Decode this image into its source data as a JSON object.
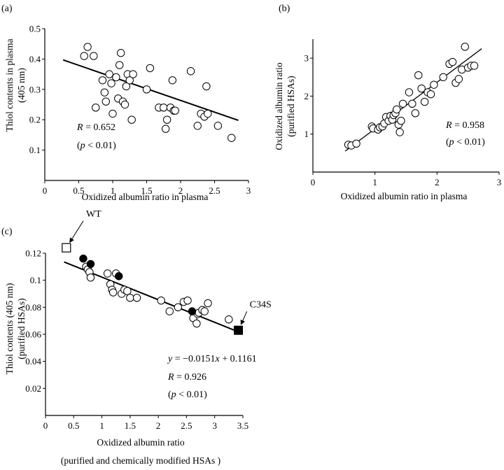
{
  "chart_data": [
    {
      "type": "scatter",
      "panel": "(a)",
      "xlabel": "Oxidized albumin ratio in plasma",
      "ylabel": [
        "Thiol contents in plasma",
        "(405 nm)"
      ],
      "xlim": [
        0,
        3
      ],
      "ylim": [
        0,
        0.5
      ],
      "xticks": [
        0,
        0.5,
        1,
        1.5,
        2,
        2.5,
        3
      ],
      "xtick_labels": [
        "0",
        "0.5",
        "1",
        "1.5",
        "2",
        "2.5",
        "3"
      ],
      "yticks": [
        0.1,
        0.2,
        0.3,
        0.4,
        0.5
      ],
      "ytick_labels": [
        "0.1",
        "0.2",
        "0.3",
        "0.4",
        "0.5"
      ],
      "grid": false,
      "fit_line": {
        "x": [
          0.27,
          2.85
        ],
        "y": [
          0.397,
          0.198
        ]
      },
      "annotations": [
        {
          "var": "R",
          "text": " = 0.652"
        },
        {
          "pre": "(",
          "var": "p",
          "text": " < 0.01)"
        }
      ],
      "series": [
        {
          "marker": "open-circle",
          "x": [
            0.58,
            0.63,
            0.72,
            0.75,
            0.85,
            0.88,
            0.9,
            0.95,
            0.98,
            1.0,
            1.05,
            1.08,
            1.1,
            1.12,
            1.15,
            1.18,
            1.2,
            1.22,
            1.25,
            1.28,
            1.3,
            1.5,
            1.55,
            1.68,
            1.75,
            1.78,
            1.8,
            1.85,
            1.88,
            1.9,
            1.92,
            2.15,
            2.25,
            2.3,
            2.35,
            2.38,
            2.4,
            2.55,
            2.75
          ],
          "y": [
            0.41,
            0.44,
            0.41,
            0.24,
            0.33,
            0.29,
            0.26,
            0.35,
            0.32,
            0.22,
            0.34,
            0.27,
            0.38,
            0.42,
            0.26,
            0.25,
            0.31,
            0.35,
            0.33,
            0.2,
            0.35,
            0.3,
            0.37,
            0.24,
            0.24,
            0.17,
            0.2,
            0.24,
            0.33,
            0.23,
            0.23,
            0.36,
            0.18,
            0.22,
            0.21,
            0.31,
            0.22,
            0.18,
            0.14
          ]
        }
      ]
    },
    {
      "type": "scatter",
      "panel": "(b)",
      "xlabel": "Oxidized albumin ratio in plasma",
      "ylabel": [
        "Oxidized albumin ratio",
        "(purified HSAs)"
      ],
      "xlim": [
        0,
        3
      ],
      "ylim": [
        0,
        3.5
      ],
      "xticks": [
        0,
        1,
        2,
        3
      ],
      "xtick_labels": [
        "0",
        "1",
        "2",
        "3"
      ],
      "yticks": [
        1,
        2,
        3
      ],
      "ytick_labels": [
        "1",
        "2",
        "3"
      ],
      "grid": false,
      "fit_line": {
        "x": [
          0.52,
          2.72
        ],
        "y": [
          0.55,
          3.25
        ]
      },
      "annotations": [
        {
          "var": "R",
          "text": " = 0.958"
        },
        {
          "pre": "(",
          "var": "p",
          "text": " < 0.01)"
        }
      ],
      "series": [
        {
          "marker": "open-circle",
          "x": [
            0.57,
            0.62,
            0.7,
            0.95,
            0.97,
            1.05,
            1.08,
            1.12,
            1.15,
            1.18,
            1.22,
            1.25,
            1.28,
            1.3,
            1.33,
            1.35,
            1.38,
            1.4,
            1.42,
            1.45,
            1.55,
            1.6,
            1.65,
            1.7,
            1.75,
            1.8,
            1.85,
            1.9,
            1.95,
            2.1,
            2.2,
            2.25,
            2.3,
            2.35,
            2.4,
            2.45,
            2.5,
            2.55,
            2.6
          ],
          "y": [
            0.72,
            0.7,
            0.75,
            1.2,
            1.15,
            1.12,
            1.18,
            1.2,
            1.28,
            1.45,
            1.35,
            1.48,
            1.38,
            1.5,
            1.55,
            1.65,
            1.25,
            1.05,
            1.35,
            1.8,
            2.1,
            1.8,
            1.55,
            2.55,
            2.2,
            1.85,
            2.1,
            2.05,
            2.3,
            2.5,
            2.85,
            2.9,
            2.35,
            2.45,
            2.7,
            3.3,
            2.75,
            2.8,
            2.8
          ]
        }
      ]
    },
    {
      "type": "scatter",
      "panel": "(c)",
      "xlabel": [
        "Oxidized albumin ratio",
        "(purified and chemically modified HSAs )"
      ],
      "ylabel": [
        "Thiol contents  (405 nm)",
        "(purified HSAs)"
      ],
      "xlim": [
        0,
        3.5
      ],
      "ylim": [
        0,
        0.12
      ],
      "xticks": [
        0,
        0.5,
        1,
        1.5,
        2,
        2.5,
        3,
        3.5
      ],
      "xtick_labels": [
        "0",
        "0.5",
        "1",
        "1.5",
        "2",
        "2.5",
        "3",
        "3.5"
      ],
      "yticks": [
        0.02,
        0.04,
        0.06,
        0.08,
        0.1,
        0.12
      ],
      "ytick_labels": [
        "0.02",
        "0.04",
        "0.06",
        "0.08",
        "0.1",
        "0.12"
      ],
      "grid": false,
      "fit_line": {
        "x": [
          0.33,
          3.47
        ],
        "y": [
          0.1135,
          0.061
        ]
      },
      "annotations": [
        {
          "pre": "y = −0.0151",
          "var": "x",
          "text": " + 0.1161"
        },
        {
          "var": "R",
          "text": " = 0.926"
        },
        {
          "pre": "(",
          "var": "p",
          "text": " < 0.01)"
        }
      ],
      "labels": [
        {
          "text": "WT",
          "x": 0.37,
          "y": 0.124,
          "tx": 0.72,
          "ty": 0.147
        },
        {
          "text": "C34S",
          "x": 3.42,
          "y": 0.063,
          "tx": 3.62,
          "ty": 0.08
        }
      ],
      "series": [
        {
          "marker": "open-circle",
          "x": [
            0.72,
            0.75,
            0.78,
            0.8,
            1.1,
            1.15,
            1.18,
            1.2,
            1.25,
            1.35,
            1.4,
            1.45,
            1.5,
            1.62,
            2.05,
            2.2,
            2.35,
            2.45,
            2.52,
            2.62,
            2.68,
            2.7,
            2.72,
            2.78,
            2.82,
            2.88,
            3.25
          ],
          "y": [
            0.11,
            0.108,
            0.106,
            0.102,
            0.105,
            0.097,
            0.093,
            0.091,
            0.105,
            0.09,
            0.093,
            0.092,
            0.087,
            0.087,
            0.085,
            0.077,
            0.08,
            0.084,
            0.085,
            0.072,
            0.068,
            0.075,
            0.076,
            0.078,
            0.077,
            0.083,
            0.071
          ]
        },
        {
          "marker": "filled-circle",
          "x": [
            0.67,
            0.8,
            1.3,
            2.6
          ],
          "y": [
            0.116,
            0.112,
            0.103,
            0.077
          ]
        },
        {
          "marker": "open-square",
          "x": [
            0.37
          ],
          "y": [
            0.124
          ]
        },
        {
          "marker": "filled-square",
          "x": [
            3.42
          ],
          "y": [
            0.063
          ]
        }
      ]
    }
  ]
}
